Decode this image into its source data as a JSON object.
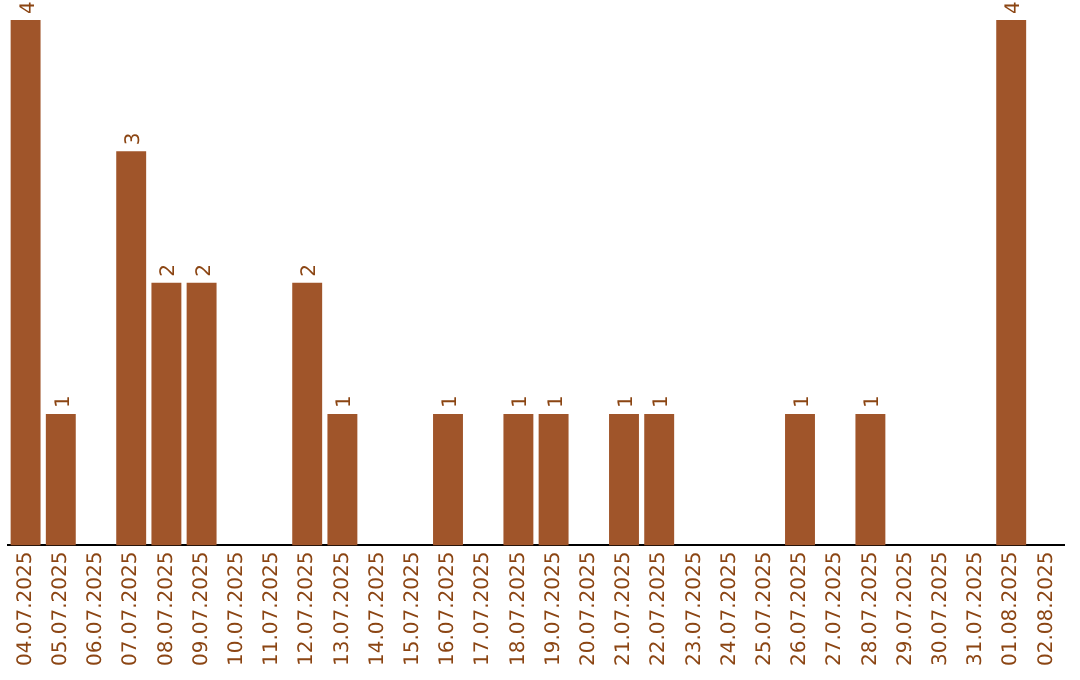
{
  "chart_data": {
    "type": "bar",
    "categories": [
      "04.07.2025",
      "05.07.2025",
      "06.07.2025",
      "07.07.2025",
      "08.07.2025",
      "09.07.2025",
      "10.07.2025",
      "11.07.2025",
      "12.07.2025",
      "13.07.2025",
      "14.07.2025",
      "15.07.2025",
      "16.07.2025",
      "17.07.2025",
      "18.07.2025",
      "19.07.2025",
      "20.07.2025",
      "21.07.2025",
      "22.07.2025",
      "23.07.2025",
      "24.07.2025",
      "25.07.2025",
      "26.07.2025",
      "27.07.2025",
      "28.07.2025",
      "29.07.2025",
      "30.07.2025",
      "31.07.2025",
      "01.08.2025",
      "02.08.2025"
    ],
    "values": [
      4,
      1,
      0,
      3,
      2,
      2,
      0,
      0,
      2,
      1,
      0,
      0,
      1,
      0,
      1,
      1,
      0,
      1,
      1,
      0,
      0,
      0,
      1,
      0,
      1,
      0,
      0,
      0,
      4,
      0
    ],
    "value_labels": [
      "4",
      "1",
      null,
      "3",
      "2",
      "2",
      null,
      null,
      "2",
      "1",
      null,
      null,
      "1",
      null,
      "1",
      "1",
      null,
      "1",
      "1",
      null,
      null,
      null,
      "1",
      null,
      "1",
      null,
      null,
      null,
      "4",
      null
    ],
    "color": "#a0552a",
    "grid": false,
    "legend": false
  }
}
